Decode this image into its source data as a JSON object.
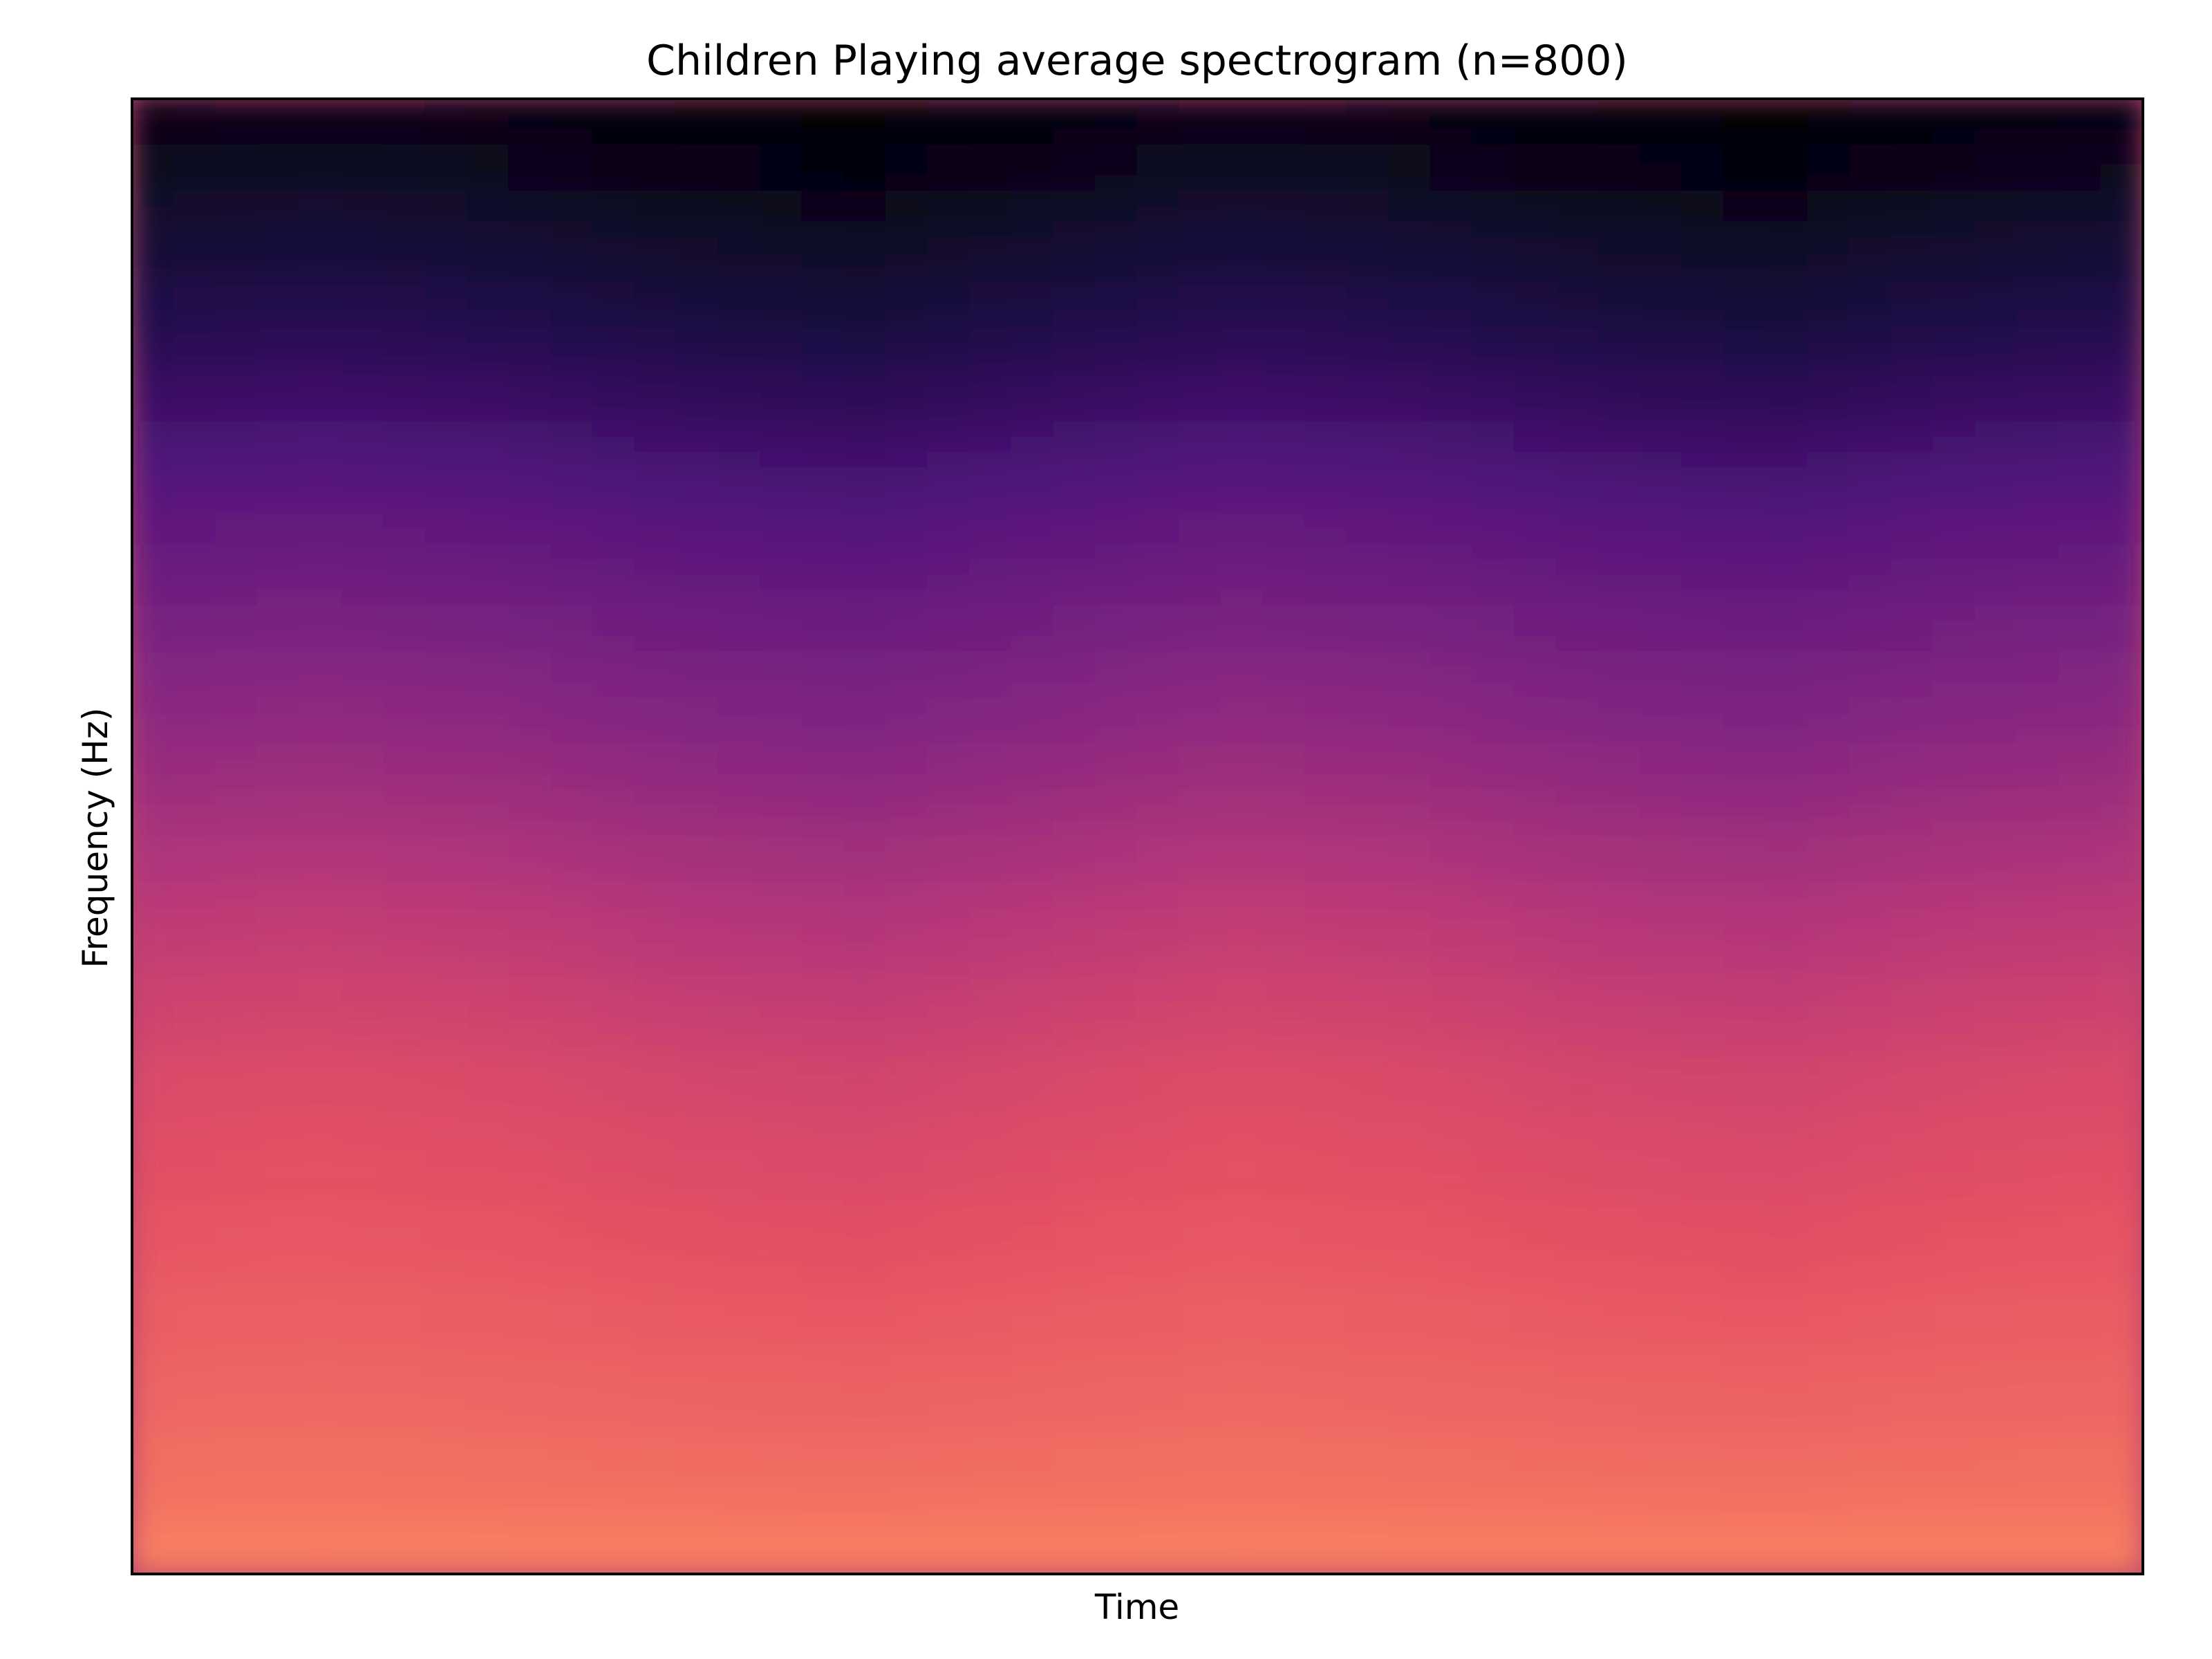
{
  "chart_data": {
    "type": "heatmap",
    "title": "Children Playing average spectrogram (n=800)",
    "xlabel": "Time",
    "ylabel": "Frequency (Hz)",
    "colormap": "magma",
    "x_ticks": [],
    "y_ticks": [],
    "grid": false,
    "legend": "none",
    "frequency_profile_low_to_high": [
      0.74,
      0.7,
      0.68,
      0.66,
      0.64,
      0.62,
      0.6,
      0.56,
      0.52,
      0.47,
      0.42,
      0.38,
      0.33,
      0.28,
      0.22,
      0.16,
      0.11,
      0.06,
      0.02
    ],
    "time_profile": [
      0.0,
      0.01,
      0.0,
      -0.02,
      -0.03,
      -0.01,
      0.01,
      0.0,
      -0.02,
      -0.03,
      -0.01,
      0.0
    ]
  }
}
